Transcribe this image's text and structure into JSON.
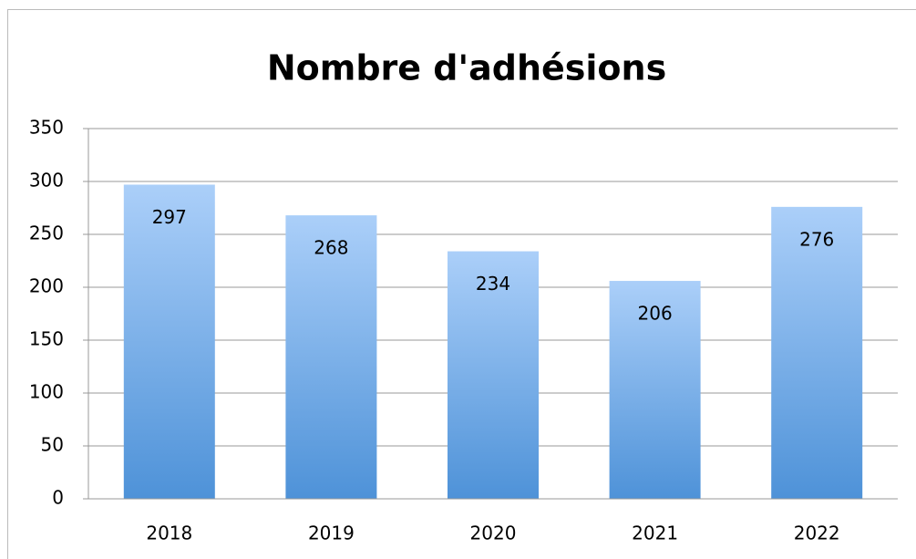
{
  "chart_data": {
    "type": "bar",
    "title": "Nombre d'adhésions",
    "categories": [
      "2018",
      "2019",
      "2020",
      "2021",
      "2022"
    ],
    "values": [
      297,
      268,
      234,
      206,
      276
    ],
    "gradient": [
      "#abcff9",
      "#4e92d8"
    ],
    "ylim": [
      0,
      350
    ],
    "yticks": [
      0,
      50,
      100,
      150,
      200,
      250,
      300,
      350
    ],
    "grid": true,
    "data_labels": true
  }
}
